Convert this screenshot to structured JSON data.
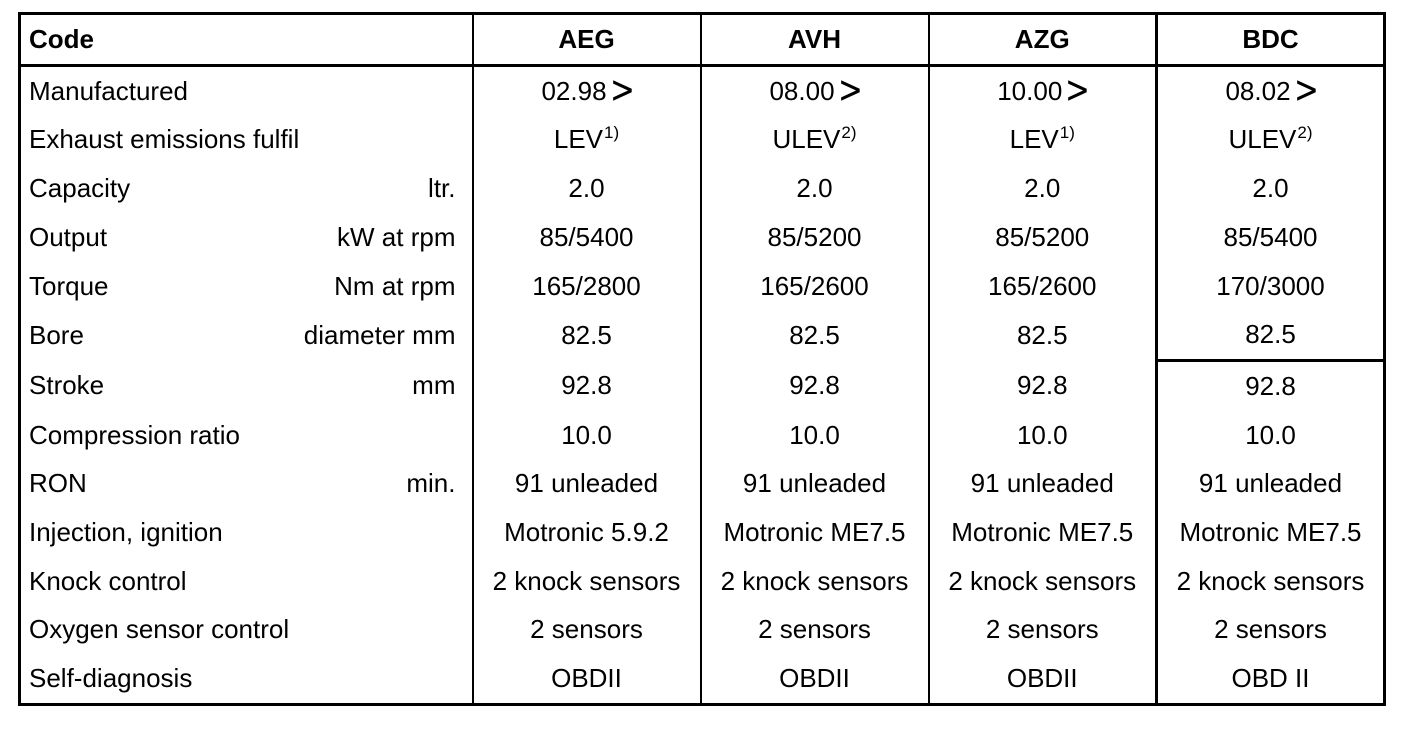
{
  "table": {
    "header": {
      "label": "Code",
      "columns": [
        "AEG",
        "AVH",
        "AZG",
        "BDC"
      ]
    },
    "rows": [
      {
        "label": "Manufactured",
        "unit": "",
        "values": [
          "02.98",
          "08.00",
          "10.00",
          "08.02"
        ],
        "suffix_glyph": "ᐳ"
      },
      {
        "label": "Exhaust emissions fulfil",
        "unit": "",
        "values": [
          "LEV",
          "ULEV",
          "LEV",
          "ULEV"
        ],
        "notes": [
          "1)",
          "2)",
          "1)",
          "2)"
        ]
      },
      {
        "label": "Capacity",
        "unit": "ltr.",
        "values": [
          "2.0",
          "2.0",
          "2.0",
          "2.0"
        ]
      },
      {
        "label": "Output",
        "unit": "kW at rpm",
        "values": [
          "85/5400",
          "85/5200",
          "85/5200",
          "85/5400"
        ]
      },
      {
        "label": "Torque",
        "unit": "Nm at rpm",
        "values": [
          "165/2800",
          "165/2600",
          "165/2600",
          "170/3000"
        ]
      },
      {
        "label": "Bore",
        "unit": "diameter mm",
        "values": [
          "82.5",
          "82.5",
          "82.5",
          "82.5"
        ]
      },
      {
        "label": "Stroke",
        "unit": "mm",
        "values": [
          "92.8",
          "92.8",
          "92.8",
          "92.8"
        ]
      },
      {
        "label": "Compression ratio",
        "unit": "",
        "values": [
          "10.0",
          "10.0",
          "10.0",
          "10.0"
        ]
      },
      {
        "label": "RON",
        "unit": "min.",
        "values": [
          "91 unleaded",
          "91 unleaded",
          "91 unleaded",
          "91 unleaded"
        ]
      },
      {
        "label": "Injection, ignition",
        "unit": "",
        "values": [
          "Motronic 5.9.2",
          "Motronic ME7.5",
          "Motronic ME7.5",
          "Motronic ME7.5"
        ]
      },
      {
        "label": "Knock control",
        "unit": "",
        "values": [
          "2 knock sensors",
          "2 knock sensors",
          "2 knock sensors",
          "2 knock sensors"
        ]
      },
      {
        "label": "Oxygen sensor control",
        "unit": "",
        "values": [
          "2 sensors",
          "2 sensors",
          "2 sensors",
          "2 sensors"
        ]
      },
      {
        "label": "Self-diagnosis",
        "unit": "",
        "values": [
          "OBDII",
          "OBDII",
          "OBDII",
          "OBD II"
        ]
      }
    ]
  }
}
